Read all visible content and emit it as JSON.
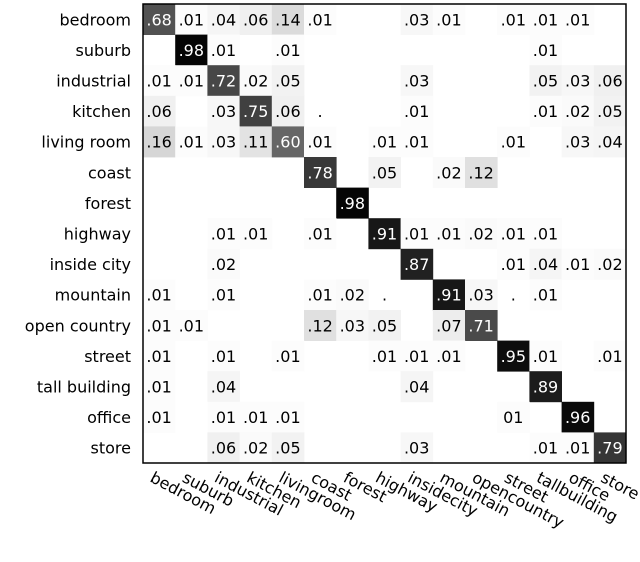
{
  "chart_data": {
    "type": "heatmap",
    "row_labels": [
      "bedroom",
      "suburb",
      "industrial",
      "kitchen",
      "living room",
      "coast",
      "forest",
      "highway",
      "inside city",
      "mountain",
      "open country",
      "street",
      "tall building",
      "office",
      "store"
    ],
    "col_labels": [
      "bedroom",
      "suburb",
      "industrial",
      "kitchen",
      "livingroom",
      "coast",
      "forest",
      "highway",
      "insidecity",
      "mountain",
      "opencountry",
      "street",
      "tallbuilding",
      "office",
      "store"
    ],
    "values": [
      [
        0.68,
        0.01,
        0.04,
        0.06,
        0.14,
        0.01,
        null,
        null,
        0.03,
        0.01,
        null,
        0.01,
        0.01,
        0.01,
        null
      ],
      [
        null,
        0.98,
        0.01,
        null,
        0.01,
        null,
        null,
        null,
        null,
        null,
        null,
        null,
        0.01,
        null,
        null
      ],
      [
        0.01,
        0.01,
        0.72,
        0.02,
        0.05,
        null,
        null,
        null,
        0.03,
        null,
        null,
        null,
        0.05,
        0.03,
        0.06
      ],
      [
        0.06,
        null,
        0.03,
        0.75,
        0.06,
        0.0,
        null,
        null,
        0.01,
        null,
        null,
        null,
        0.01,
        0.02,
        0.05
      ],
      [
        0.16,
        0.01,
        0.03,
        0.11,
        0.6,
        0.01,
        null,
        0.01,
        0.01,
        null,
        null,
        0.01,
        null,
        0.03,
        0.04
      ],
      [
        null,
        null,
        null,
        null,
        null,
        0.78,
        null,
        0.05,
        null,
        0.02,
        0.12,
        null,
        null,
        null,
        null
      ],
      [
        null,
        null,
        null,
        null,
        null,
        null,
        0.98,
        null,
        null,
        null,
        null,
        null,
        null,
        null,
        null
      ],
      [
        null,
        null,
        0.01,
        0.01,
        null,
        0.01,
        null,
        0.91,
        0.01,
        0.01,
        0.02,
        0.01,
        0.01,
        null,
        null
      ],
      [
        null,
        null,
        0.02,
        null,
        null,
        null,
        null,
        null,
        0.87,
        null,
        null,
        0.01,
        0.04,
        0.01,
        0.02
      ],
      [
        0.01,
        null,
        0.01,
        null,
        null,
        0.01,
        0.02,
        0.0,
        null,
        0.91,
        0.03,
        0.0,
        0.01,
        null,
        null
      ],
      [
        0.01,
        0.01,
        null,
        null,
        null,
        0.12,
        0.03,
        0.05,
        null,
        0.07,
        0.71,
        null,
        null,
        null,
        null
      ],
      [
        0.01,
        null,
        0.01,
        null,
        0.01,
        null,
        null,
        0.01,
        0.01,
        0.01,
        null,
        0.95,
        0.01,
        null,
        0.01
      ],
      [
        0.01,
        null,
        0.04,
        null,
        null,
        null,
        null,
        null,
        0.04,
        null,
        null,
        null,
        0.89,
        null,
        null
      ],
      [
        0.01,
        null,
        0.01,
        0.01,
        0.01,
        null,
        null,
        null,
        null,
        null,
        null,
        0.01,
        null,
        0.96,
        null
      ],
      [
        null,
        null,
        0.06,
        0.02,
        0.05,
        null,
        null,
        null,
        0.03,
        null,
        null,
        null,
        0.01,
        0.01,
        0.79
      ]
    ],
    "cell_text": [
      [
        ".68",
        ".01",
        ".04",
        ".06",
        ".14",
        ".01",
        "",
        "",
        ".03",
        ".01",
        "",
        ".01",
        ".01",
        ".01",
        ""
      ],
      [
        "",
        ".98",
        ".01",
        "",
        ".01",
        "",
        "",
        "",
        "",
        "",
        "",
        "",
        ".01",
        "",
        ""
      ],
      [
        ".01",
        ".01",
        ".72",
        ".02",
        ".05",
        "",
        "",
        "",
        ".03",
        "",
        "",
        "",
        ".05",
        ".03",
        ".06"
      ],
      [
        ".06",
        "",
        ".03",
        ".75",
        ".06",
        ".",
        "",
        "",
        ".01",
        "",
        "",
        "",
        ".01",
        ".02",
        ".05"
      ],
      [
        ".16",
        ".01",
        ".03",
        ".11",
        ".60",
        ".01",
        "",
        ".01",
        ".01",
        "",
        "",
        ".01",
        "",
        ".03",
        ".04"
      ],
      [
        "",
        "",
        "",
        "",
        "",
        ".78",
        "",
        ".05",
        "",
        ".02",
        ".12",
        "",
        "",
        "",
        ""
      ],
      [
        "",
        "",
        "",
        "",
        "",
        "",
        ".98",
        "",
        "",
        "",
        "",
        "",
        "",
        "",
        ""
      ],
      [
        "",
        "",
        ".01",
        ".01",
        "",
        ".01",
        "",
        ".91",
        ".01",
        ".01",
        ".02",
        ".01",
        ".01",
        "",
        ""
      ],
      [
        "",
        "",
        ".02",
        "",
        "",
        "",
        "",
        "",
        ".87",
        "",
        "",
        ".01",
        ".04",
        ".01",
        ".02"
      ],
      [
        ".01",
        "",
        ".01",
        "",
        "",
        ".01",
        ".02",
        ".",
        "",
        ".91",
        ".03",
        ".",
        ".01",
        "",
        ""
      ],
      [
        ".01",
        ".01",
        "",
        "",
        "",
        ".12",
        ".03",
        ".05",
        "",
        ".07",
        ".71",
        "",
        "",
        "",
        ""
      ],
      [
        ".01",
        "",
        ".01",
        "",
        ".01",
        "",
        "",
        ".01",
        ".01",
        ".01",
        "",
        ".95",
        ".01",
        "",
        ".01"
      ],
      [
        ".01",
        "",
        ".04",
        "",
        "",
        "",
        "",
        "",
        ".04",
        "",
        "",
        "",
        ".89",
        "",
        ""
      ],
      [
        ".01",
        "",
        ".01",
        ".01",
        ".01",
        "",
        "",
        "",
        "",
        "",
        "",
        "01",
        "",
        ".96",
        ""
      ],
      [
        "",
        "",
        ".06",
        ".02",
        ".05",
        "",
        "",
        "",
        ".03",
        "",
        "",
        "",
        ".01",
        ".01",
        ".79"
      ]
    ],
    "value_range": [
      0,
      1
    ],
    "colors": {
      "low": "#ffffff",
      "high": "#000000",
      "border": "#000000"
    },
    "grid": false,
    "title": "",
    "xlabel": "",
    "ylabel": ""
  }
}
